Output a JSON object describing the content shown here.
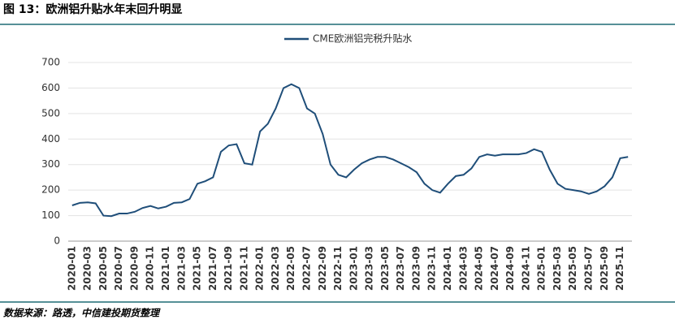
{
  "header": {
    "title": "图 13：欧洲铝升贴水年末回升明显"
  },
  "chart_data": {
    "type": "line",
    "categories": [
      "2020-01",
      null,
      "2020-03",
      null,
      "2020-05",
      null,
      "2020-07",
      null,
      "2020-09",
      null,
      "2020-11",
      null,
      "2021-01",
      null,
      "2021-03",
      null,
      "2021-05",
      null,
      "2021-07",
      null,
      "2021-09",
      null,
      "2021-11",
      null,
      "2022-01",
      null,
      "2022-03",
      null,
      "2022-05",
      null,
      "2022-07",
      null,
      "2022-09",
      null,
      "2022-11",
      null,
      "2023-01",
      null,
      "2023-03",
      null,
      "2023-05",
      null,
      "2023-07",
      null,
      "2023-09",
      null,
      "2023-11",
      null,
      "2024-01",
      null,
      "2024-03",
      null,
      "2024-05",
      null,
      "2024-07",
      null,
      "2024-09",
      null,
      "2024-11",
      null,
      "2025-01",
      null,
      "2025-03",
      null,
      "2025-05",
      null,
      "2025-07",
      null,
      "2025-09",
      null,
      "2025-11",
      null
    ],
    "series": [
      {
        "name": "CME欧洲铝完税升贴水",
        "color": "#1f4e79",
        "values": [
          140,
          150,
          152,
          148,
          100,
          98,
          108,
          108,
          115,
          130,
          138,
          128,
          135,
          150,
          152,
          165,
          225,
          235,
          250,
          350,
          375,
          380,
          305,
          300,
          430,
          460,
          520,
          600,
          615,
          600,
          520,
          500,
          420,
          300,
          260,
          250,
          280,
          305,
          320,
          330,
          330,
          320,
          305,
          290,
          270,
          225,
          200,
          190,
          225,
          255,
          260,
          285,
          330,
          340,
          335,
          340,
          340,
          340,
          345,
          360,
          350,
          280,
          225,
          205,
          200,
          195,
          185,
          195,
          215,
          250,
          325,
          330
        ]
      }
    ],
    "ylim": [
      0,
      700
    ],
    "yticks": [
      0,
      100,
      200,
      300,
      400,
      500,
      600,
      700
    ],
    "grid": true
  },
  "footer": {
    "source": "数据来源：路透，中信建投期货整理"
  }
}
